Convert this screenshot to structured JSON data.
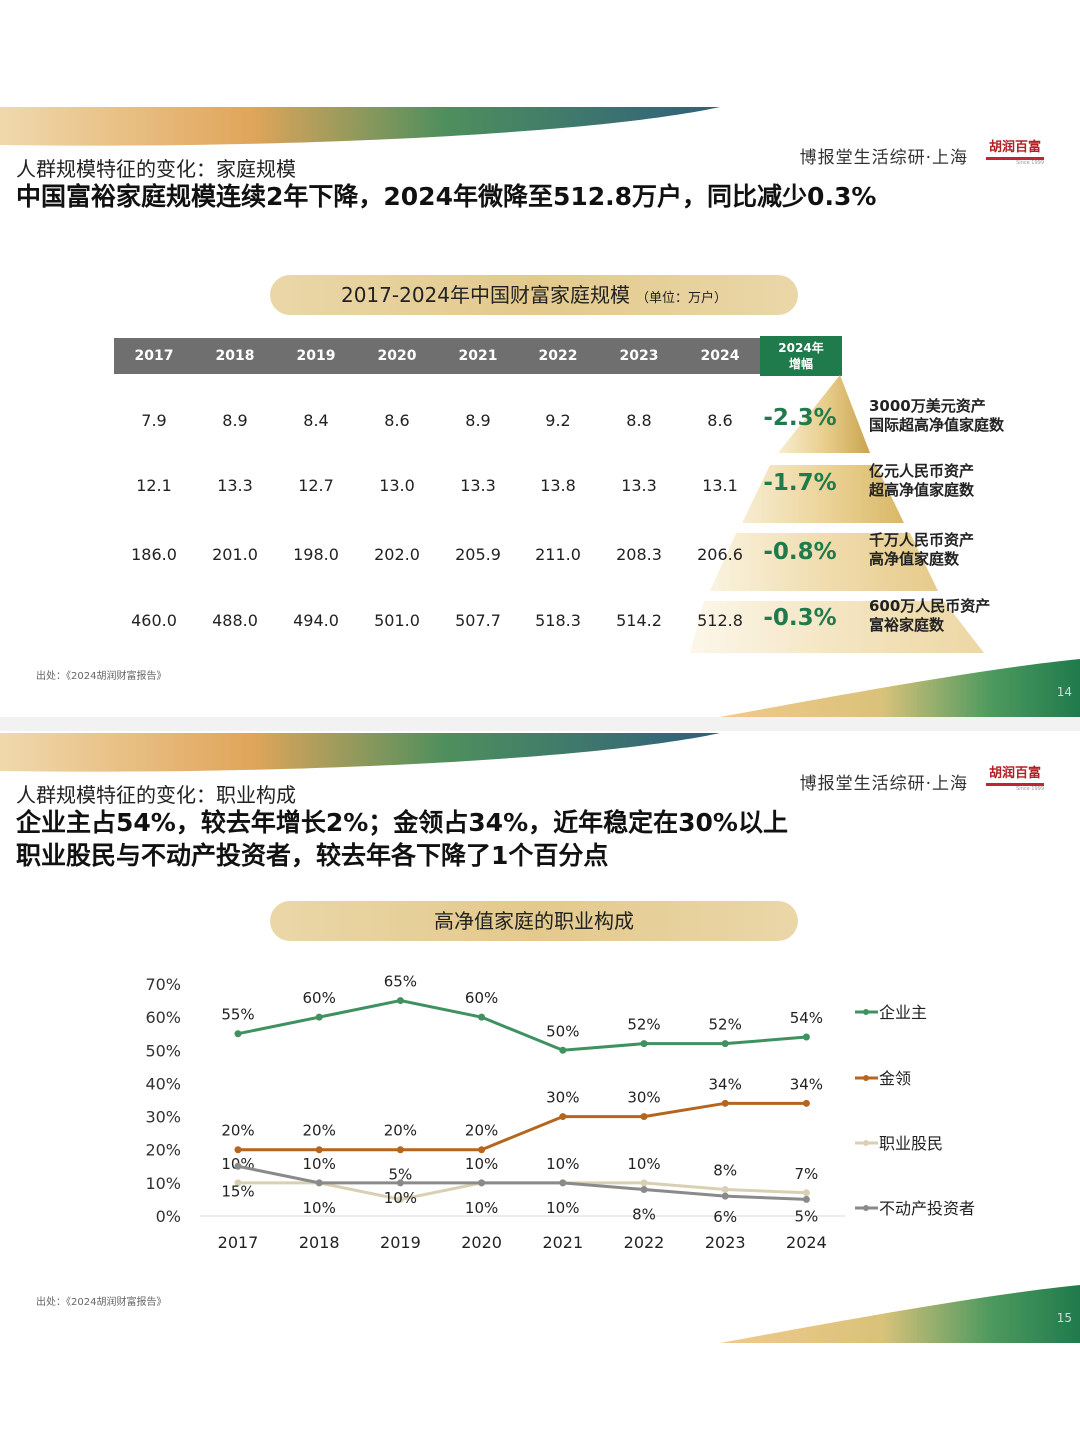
{
  "slide1": {
    "subtitle": "人群规模特征的变化：家庭规模",
    "headline": "中国富裕家庭规模连续2年下降，2024年微降至512.8万户，同比减少0.3%",
    "brand": "博报堂生活综研·上海",
    "logo": "胡润百富",
    "logo_since": "Since 1999",
    "pill_title": "2017-2024年中国财富家庭规模",
    "pill_unit": "（单位：万户）",
    "source": "出处：《2024胡润财富报告》",
    "page": "14",
    "colors": {
      "green": "#1f7a4c",
      "gold": "#e3c98c",
      "header_gray": "#6f6f6f"
    }
  },
  "slide2": {
    "subtitle": "人群规模特征的变化：职业构成",
    "headline_1": "企业主占54%，较去年增长2%；金领占34%，近年稳定在30%以上",
    "headline_2": "职业股民与不动产投资者，较去年各下降了1个百分点",
    "brand": "博报堂生活综研·上海",
    "logo": "胡润百富",
    "logo_since": "Since 1999",
    "pill_title": "高净值家庭的职业构成",
    "source": "出处：《2024胡润财富报告》",
    "page": "15"
  },
  "chart_data": [
    {
      "type": "table",
      "title": "2017-2024年中国财富家庭规模",
      "unit": "（单位：万户）",
      "columns": [
        "2017",
        "2018",
        "2019",
        "2020",
        "2021",
        "2022",
        "2023",
        "2024"
      ],
      "change_header": "2024年增幅",
      "change_header_lines": [
        "2024年",
        "增幅"
      ],
      "rows": [
        {
          "label_lines": [
            "3000万美元资产",
            "国际超高净值家庭数"
          ],
          "values": [
            "7.9",
            "8.9",
            "8.4",
            "8.6",
            "8.9",
            "9.2",
            "8.8",
            "8.6"
          ],
          "change": "-2.3%"
        },
        {
          "label_lines": [
            "亿元人民币资产",
            "超高净值家庭数"
          ],
          "values": [
            "12.1",
            "13.3",
            "12.7",
            "13.0",
            "13.3",
            "13.8",
            "13.3",
            "13.1"
          ],
          "change": "-1.7%"
        },
        {
          "label_lines": [
            "千万人民币资产",
            "高净值家庭数"
          ],
          "values": [
            "186.0",
            "201.0",
            "198.0",
            "202.0",
            "205.9",
            "211.0",
            "208.3",
            "206.6"
          ],
          "change": "-0.8%"
        },
        {
          "label_lines": [
            "600万人民币资产",
            "富裕家庭数"
          ],
          "values": [
            "460.0",
            "488.0",
            "494.0",
            "501.0",
            "507.7",
            "518.3",
            "514.2",
            "512.8"
          ],
          "change": "-0.3%"
        }
      ]
    },
    {
      "type": "line",
      "title": "高净值家庭的职业构成",
      "categories": [
        "2017",
        "2018",
        "2019",
        "2020",
        "2021",
        "2022",
        "2023",
        "2024"
      ],
      "ylim": [
        0,
        70
      ],
      "yticks": [
        "0%",
        "10%",
        "20%",
        "30%",
        "40%",
        "50%",
        "60%",
        "70%"
      ],
      "legend_position": "right",
      "series": [
        {
          "name": "企业主",
          "color": "#3f9160",
          "values": [
            55,
            60,
            65,
            60,
            50,
            52,
            52,
            54
          ],
          "labels": [
            "55%",
            "60%",
            "65%",
            "60%",
            "50%",
            "52%",
            "52%",
            "54%"
          ]
        },
        {
          "name": "金领",
          "color": "#b5651d",
          "values": [
            20,
            20,
            20,
            20,
            30,
            30,
            34,
            34
          ],
          "labels": [
            "20%",
            "20%",
            "20%",
            "20%",
            "30%",
            "30%",
            "34%",
            "34%"
          ]
        },
        {
          "name": "职业股民",
          "color": "#d9cfb2",
          "values": [
            10,
            10,
            5,
            10,
            10,
            10,
            8,
            7
          ],
          "labels": [
            "10%",
            "10%",
            "5%",
            "10%",
            "10%",
            "10%",
            "8%",
            "7%"
          ]
        },
        {
          "name": "不动产投资者",
          "color": "#8a8a8a",
          "values": [
            15,
            10,
            10,
            10,
            10,
            8,
            6,
            5
          ],
          "labels": [
            "15%",
            "10%",
            "10%",
            "10%",
            "10%",
            "8%",
            "6%",
            "5%"
          ]
        }
      ]
    }
  ]
}
